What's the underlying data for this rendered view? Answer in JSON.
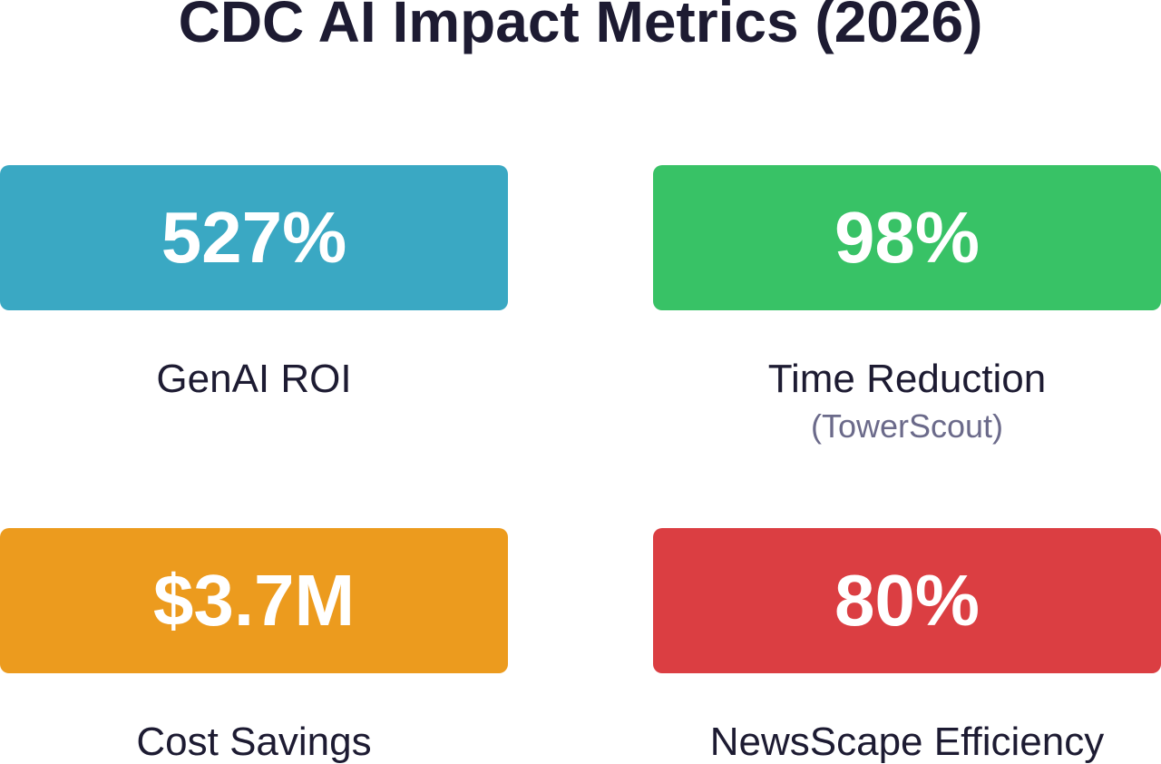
{
  "title": "CDC AI Impact Metrics (2026)",
  "metrics": [
    {
      "value": "527%",
      "label": "GenAI ROI",
      "sublabel": "",
      "color": "#3aa8c3"
    },
    {
      "value": "98%",
      "label": "Time Reduction",
      "sublabel": "(TowerScout)",
      "color": "#38c266"
    },
    {
      "value": "$3.7M",
      "label": "Cost Savings",
      "sublabel": "",
      "color": "#ec9b1e"
    },
    {
      "value": "80%",
      "label": "NewsScape Efficiency",
      "sublabel": "",
      "color": "#db3e42"
    }
  ]
}
